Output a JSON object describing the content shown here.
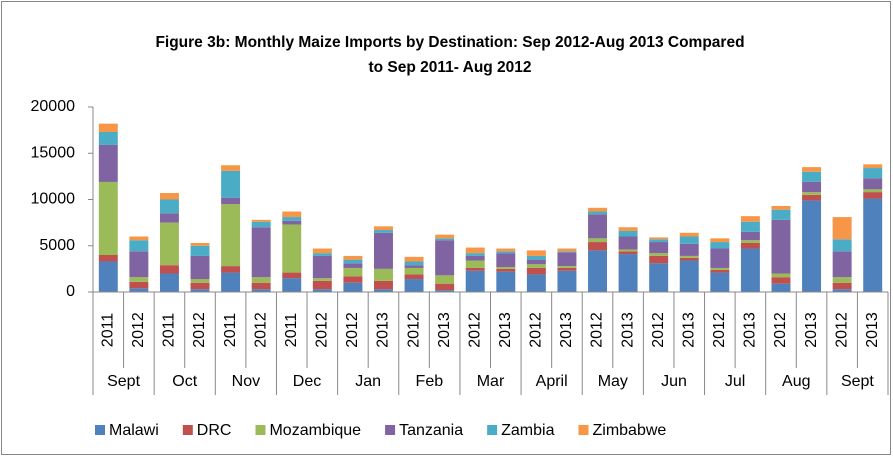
{
  "chart_data": {
    "type": "stacked_bar",
    "title": "Figure 3b: Monthly Maize Imports by Destination: Sep 2012-Aug 2013 Compared to Sep 2011- Aug 2012",
    "categories": [
      "2011",
      "2012",
      "2011",
      "2012",
      "2011",
      "2012",
      "2011",
      "2012",
      "2012",
      "2013",
      "2012",
      "2013",
      "2012",
      "2013",
      "2012",
      "2013",
      "2012",
      "2013",
      "2012",
      "2013",
      "2012",
      "2013",
      "2012",
      "2013",
      "2012",
      "2013"
    ],
    "groups": [
      "Sept",
      "Oct",
      "Nov",
      "Dec",
      "Jan",
      "Feb",
      "Mar",
      "April",
      "May",
      "Jun",
      "Jul",
      "Aug",
      "Sept"
    ],
    "ylim": [
      0,
      20000
    ],
    "yticks": [
      0,
      5000,
      10000,
      15000,
      20000
    ],
    "grid": false,
    "legend": "bottom",
    "series": [
      {
        "name": "Malawi",
        "color": "#4f81bd",
        "values": [
          3300,
          400,
          2000,
          300,
          2100,
          300,
          1500,
          300,
          1000,
          300,
          1400,
          200,
          2300,
          2200,
          1900,
          2300,
          4500,
          4100,
          3100,
          3400,
          2100,
          4700,
          900,
          9900,
          300,
          10100
        ]
      },
      {
        "name": "DRC",
        "color": "#c0504d",
        "values": [
          700,
          700,
          900,
          700,
          700,
          700,
          600,
          900,
          700,
          900,
          500,
          700,
          300,
          300,
          700,
          300,
          900,
          300,
          800,
          300,
          300,
          600,
          700,
          600,
          700,
          700
        ]
      },
      {
        "name": "Mozambique",
        "color": "#9bbb59",
        "values": [
          7900,
          500,
          4600,
          400,
          6700,
          600,
          5200,
          300,
          900,
          1300,
          700,
          900,
          800,
          200,
          400,
          200,
          400,
          200,
          300,
          200,
          200,
          300,
          400,
          300,
          600,
          300
        ]
      },
      {
        "name": "Tanzania",
        "color": "#8064a2",
        "values": [
          4000,
          2800,
          1000,
          2500,
          700,
          5400,
          400,
          2400,
          500,
          3900,
          300,
          3800,
          500,
          1500,
          500,
          1500,
          2600,
          1400,
          1200,
          1300,
          2100,
          900,
          5800,
          1100,
          2800,
          1200
        ]
      },
      {
        "name": "Zambia",
        "color": "#4bacc6",
        "values": [
          1400,
          1200,
          1500,
          1100,
          2900,
          600,
          400,
          300,
          400,
          300,
          400,
          200,
          300,
          200,
          400,
          100,
          300,
          600,
          300,
          800,
          700,
          1100,
          1100,
          1100,
          1300,
          1100
        ]
      },
      {
        "name": "Zimbabwe",
        "color": "#f79646",
        "values": [
          900,
          400,
          700,
          300,
          600,
          200,
          600,
          500,
          400,
          400,
          500,
          400,
          600,
          300,
          600,
          300,
          400,
          400,
          200,
          400,
          400,
          600,
          400,
          500,
          2400,
          400
        ]
      }
    ]
  }
}
